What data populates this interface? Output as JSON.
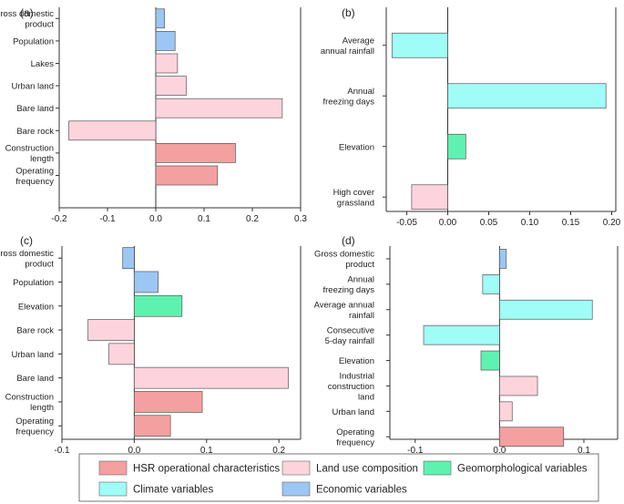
{
  "group_colors": {
    "hsr": "#f5a0a0",
    "land": "#fdd3de",
    "geo": "#5ef2b0",
    "climate": "#9ffcf6",
    "econ": "#9cc6f4"
  },
  "chart_data": [
    {
      "type": "bar",
      "orientation": "horizontal",
      "panel": "(a)",
      "xlim": [
        -0.2,
        0.3
      ],
      "xticks": [
        -0.2,
        -0.1,
        0.0,
        0.1,
        0.2,
        0.3
      ],
      "xtick_labels": [
        "-0.2",
        "-0.1",
        "0.0",
        "0.1",
        "0.2",
        "0.3"
      ],
      "bars": [
        {
          "label": [
            "Gross domestic",
            "product"
          ],
          "value": 0.018,
          "group": "econ"
        },
        {
          "label": [
            "Population"
          ],
          "value": 0.04,
          "group": "econ"
        },
        {
          "label": [
            "Lakes"
          ],
          "value": 0.045,
          "group": "land"
        },
        {
          "label": [
            "Urban land"
          ],
          "value": 0.063,
          "group": "land"
        },
        {
          "label": [
            "Bare land"
          ],
          "value": 0.262,
          "group": "land"
        },
        {
          "label": [
            "Bare rock"
          ],
          "value": -0.18,
          "group": "land"
        },
        {
          "label": [
            "Construction",
            "length"
          ],
          "value": 0.165,
          "group": "hsr"
        },
        {
          "label": [
            "Operating",
            "frequency"
          ],
          "value": 0.128,
          "group": "hsr"
        }
      ]
    },
    {
      "type": "bar",
      "orientation": "horizontal",
      "panel": "(b)",
      "xlim": [
        -0.075,
        0.205
      ],
      "xticks": [
        -0.05,
        0.0,
        0.05,
        0.1,
        0.15,
        0.2
      ],
      "xtick_labels": [
        "-0.05",
        "0.00",
        "0.05",
        "0.10",
        "0.15",
        "0.20"
      ],
      "bars": [
        {
          "label": [
            "Average",
            "annual rainfall"
          ],
          "value": -0.068,
          "group": "climate"
        },
        {
          "label": [
            "Annual",
            "freezing days"
          ],
          "value": 0.193,
          "group": "climate"
        },
        {
          "label": [
            "Elevation"
          ],
          "value": 0.022,
          "group": "geo"
        },
        {
          "label": [
            "High cover",
            "grassland"
          ],
          "value": -0.044,
          "group": "land"
        }
      ]
    },
    {
      "type": "bar",
      "orientation": "horizontal",
      "panel": "(c)",
      "xlim": [
        -0.1,
        0.23
      ],
      "xticks": [
        -0.1,
        0.0,
        0.1,
        0.2
      ],
      "xtick_labels": [
        "-0.1",
        "0.0",
        "0.1",
        "0.2"
      ],
      "bars": [
        {
          "label": [
            "Gross domestic",
            "product"
          ],
          "value": -0.016,
          "group": "econ"
        },
        {
          "label": [
            "Population"
          ],
          "value": 0.033,
          "group": "econ"
        },
        {
          "label": [
            "Elevation"
          ],
          "value": 0.066,
          "group": "geo"
        },
        {
          "label": [
            "Bare rock"
          ],
          "value": -0.064,
          "group": "land"
        },
        {
          "label": [
            "Urban land"
          ],
          "value": -0.035,
          "group": "land"
        },
        {
          "label": [
            "Bare land"
          ],
          "value": 0.213,
          "group": "land"
        },
        {
          "label": [
            "Construction",
            "length"
          ],
          "value": 0.094,
          "group": "hsr"
        },
        {
          "label": [
            "Operating",
            "frequency"
          ],
          "value": 0.05,
          "group": "hsr"
        }
      ]
    },
    {
      "type": "bar",
      "orientation": "horizontal",
      "panel": "(d)",
      "xlim": [
        -0.13,
        0.14
      ],
      "xticks": [
        -0.1,
        0.0,
        0.1
      ],
      "xtick_labels": [
        "-0.1",
        "0.0",
        "0.1"
      ],
      "bars": [
        {
          "label": [
            "Gross domestic",
            "product"
          ],
          "value": 0.008,
          "group": "econ"
        },
        {
          "label": [
            "Annual",
            "freezing days"
          ],
          "value": -0.02,
          "group": "climate"
        },
        {
          "label": [
            "Average annual",
            "rainfall"
          ],
          "value": 0.11,
          "group": "climate"
        },
        {
          "label": [
            "Consecutive",
            "5-day rainfall"
          ],
          "value": -0.09,
          "group": "climate"
        },
        {
          "label": [
            "Elevation"
          ],
          "value": -0.022,
          "group": "geo"
        },
        {
          "label": [
            "Industrial",
            "construction",
            "land"
          ],
          "value": 0.045,
          "group": "land"
        },
        {
          "label": [
            "Urban land"
          ],
          "value": 0.015,
          "group": "land"
        },
        {
          "label": [
            "Operating",
            "frequency"
          ],
          "value": 0.076,
          "group": "hsr"
        }
      ]
    }
  ],
  "legend": [
    {
      "label": "HSR operational characteristics",
      "group": "hsr"
    },
    {
      "label": "Land use composition",
      "group": "land"
    },
    {
      "label": "Geomorphological variables",
      "group": "geo"
    },
    {
      "label": "Climate variables",
      "group": "climate"
    },
    {
      "label": "Economic variables",
      "group": "econ"
    }
  ]
}
